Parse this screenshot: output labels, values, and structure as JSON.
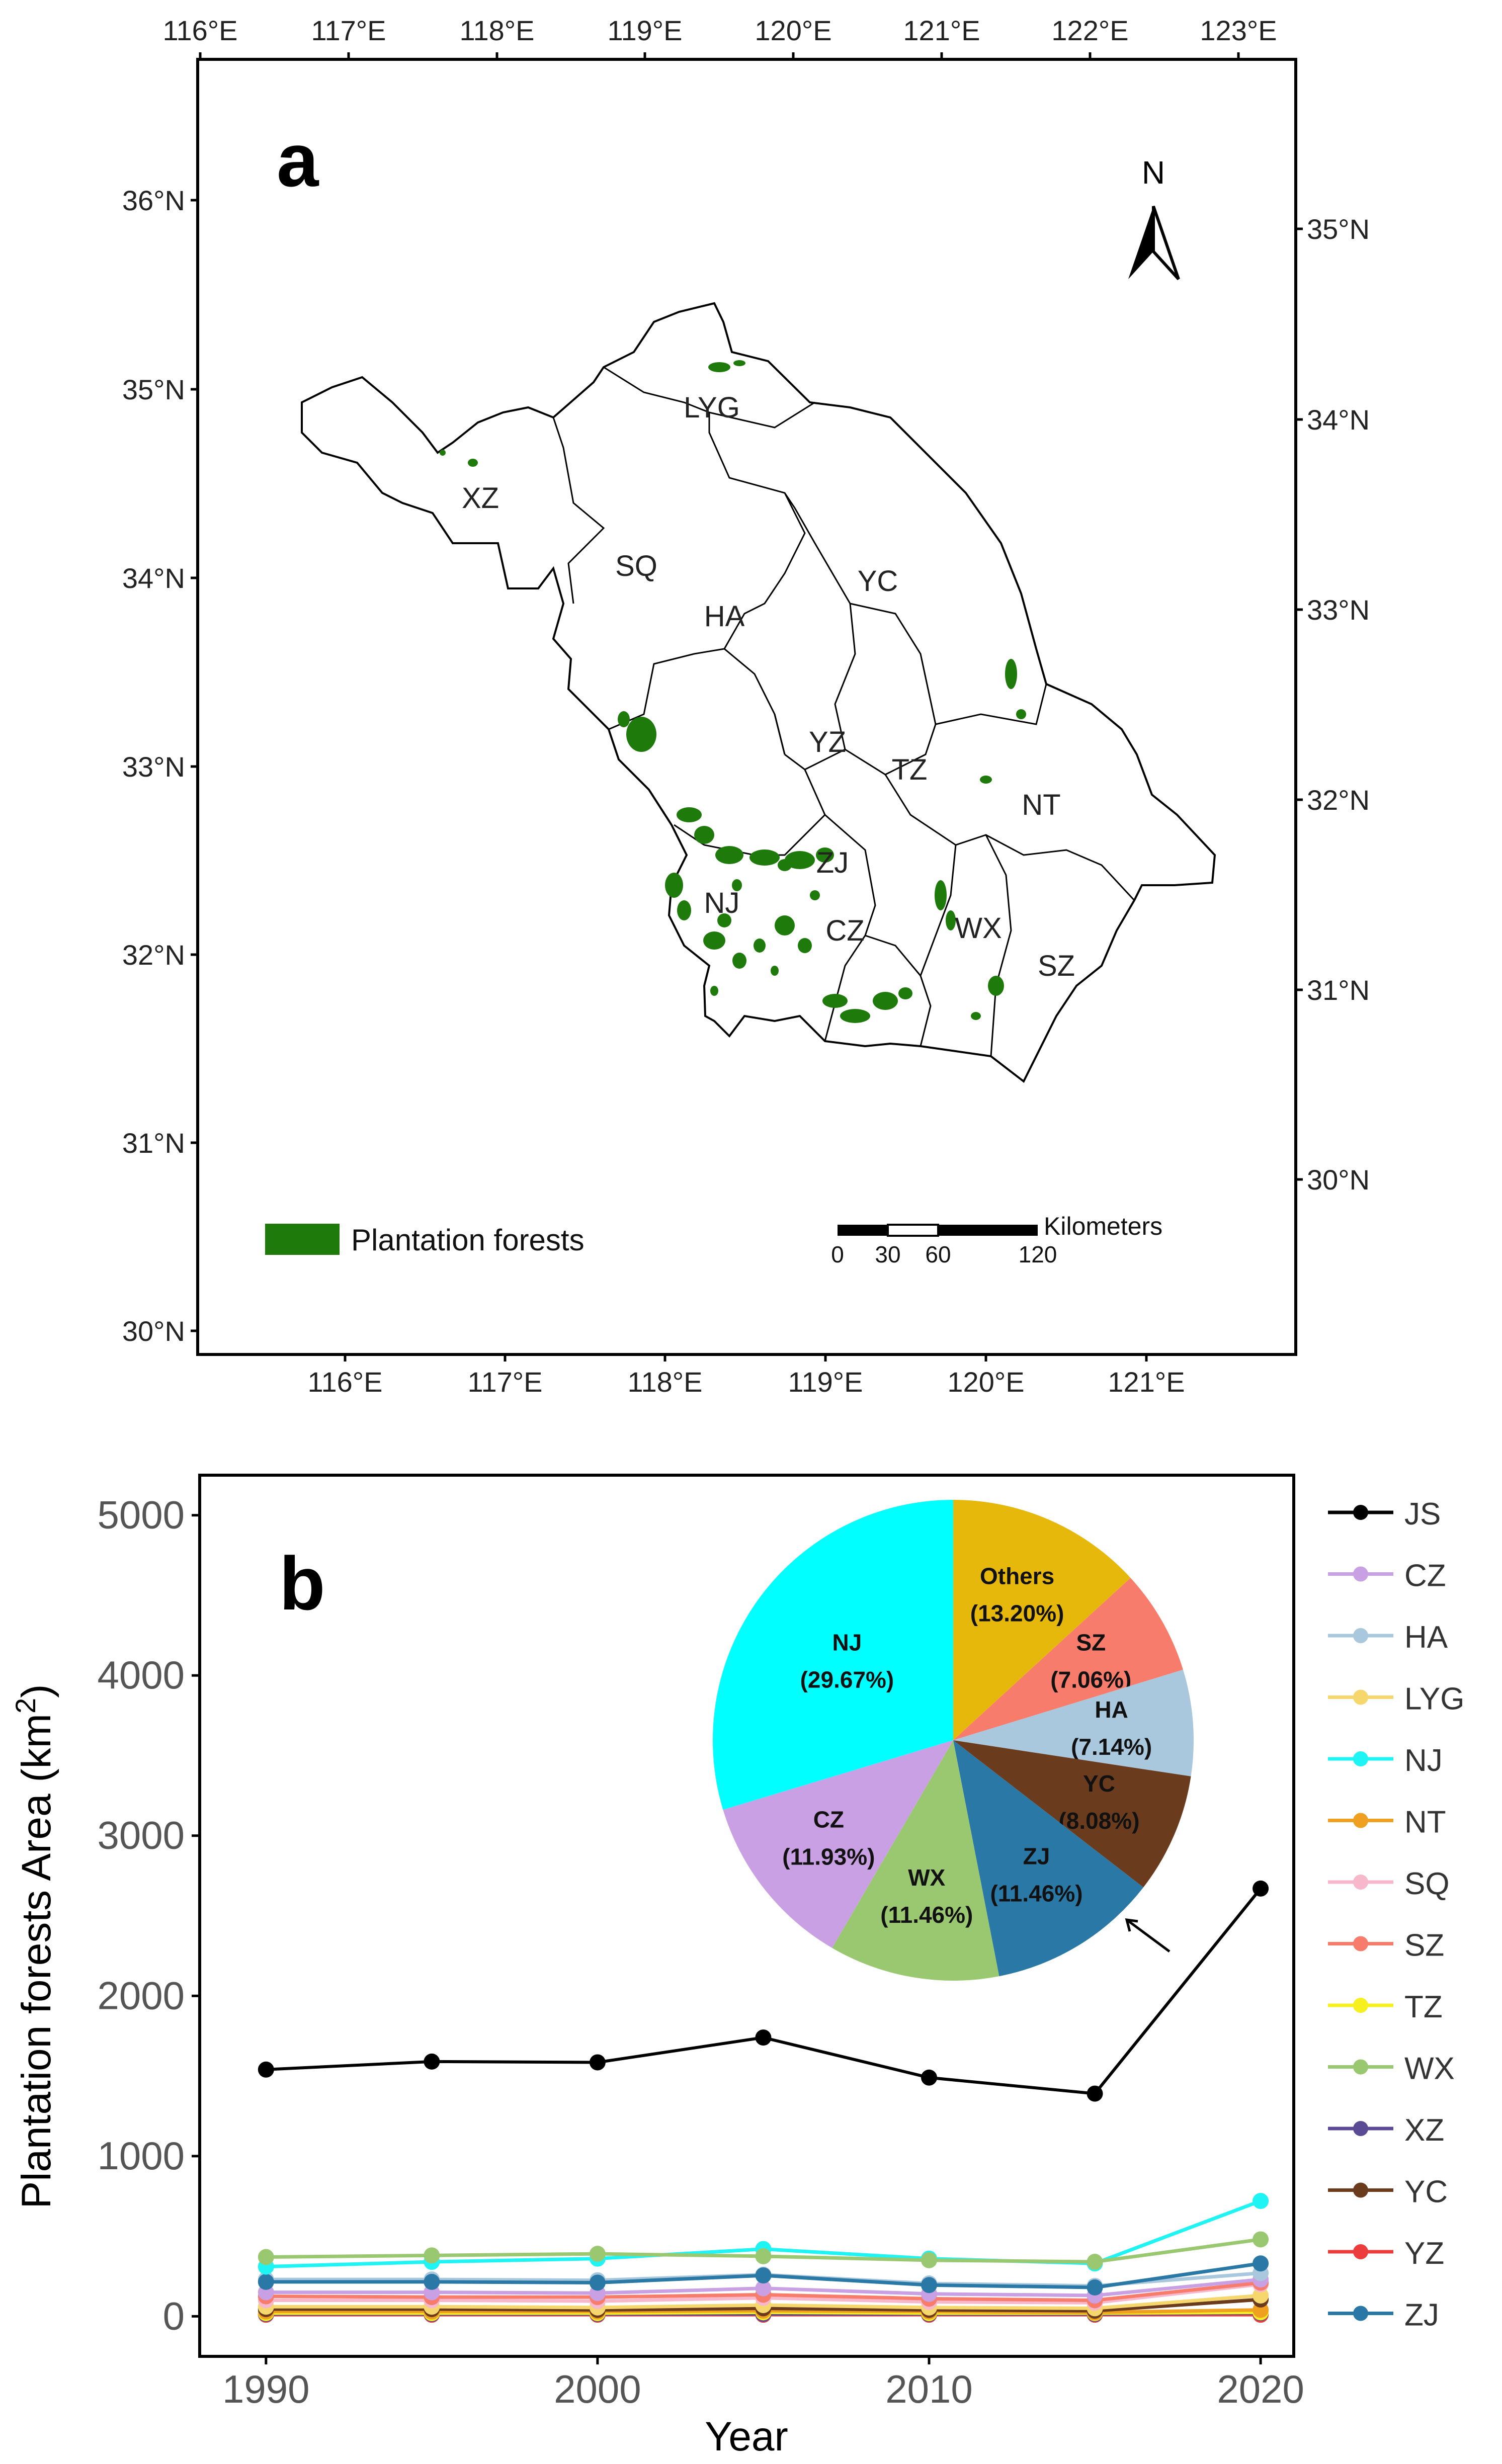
{
  "panel_a": {
    "label": "a",
    "north_label": "N",
    "top_ticks": [
      "116°E",
      "117°E",
      "118°E",
      "119°E",
      "120°E",
      "121°E",
      "122°E",
      "123°E"
    ],
    "bottom_ticks": [
      "116°E",
      "117°E",
      "118°E",
      "119°E",
      "120°E",
      "121°E"
    ],
    "left_ticks": [
      "36°N",
      "35°N",
      "34°N",
      "33°N",
      "32°N",
      "31°N",
      "30°N"
    ],
    "right_ticks": [
      "35°N",
      "34°N",
      "33°N",
      "32°N",
      "31°N",
      "30°N"
    ],
    "regions": [
      "XZ",
      "LYG",
      "SQ",
      "HA",
      "YC",
      "YZ",
      "TZ",
      "NT",
      "ZJ",
      "NJ",
      "CZ",
      "WX",
      "SZ"
    ],
    "legend_label": "Plantation forests",
    "legend_color": "#1f7a0c",
    "scale_bar": {
      "unit": "Kilometers",
      "ticks": [
        "0",
        "30",
        "60",
        "120"
      ]
    }
  },
  "panel_b": {
    "label": "b",
    "legend_items": [
      {
        "name": "JS",
        "color": "#000000"
      },
      {
        "name": "CZ",
        "color": "#c9a0e3"
      },
      {
        "name": "HA",
        "color": "#a9c8dd"
      },
      {
        "name": "LYG",
        "color": "#f5d76e"
      },
      {
        "name": "NJ",
        "color": "#1ef4f4"
      },
      {
        "name": "NT",
        "color": "#f0a020"
      },
      {
        "name": "SQ",
        "color": "#f7b8cc"
      },
      {
        "name": "SZ",
        "color": "#f87c6c"
      },
      {
        "name": "TZ",
        "color": "#f5f01e"
      },
      {
        "name": "WX",
        "color": "#9ac870"
      },
      {
        "name": "XZ",
        "color": "#5b4a94"
      },
      {
        "name": "YC",
        "color": "#6b3b1e"
      },
      {
        "name": "YZ",
        "color": "#ec3c3c"
      },
      {
        "name": "ZJ",
        "color": "#2a78a6"
      }
    ]
  },
  "chart_data": [
    {
      "type": "line",
      "title": "",
      "xlabel": "Year",
      "ylabel": "Plantation forests Area (km",
      "ylabel_sup": "2",
      "ylabel_close": ")",
      "x": [
        1990,
        1995,
        2000,
        2005,
        2010,
        2015,
        2020
      ],
      "xlim": [
        1988,
        2021
      ],
      "ylim": [
        -250,
        5250
      ],
      "xticks": [
        1990,
        2000,
        2010,
        2020
      ],
      "yticks": [
        0,
        1000,
        2000,
        3000,
        4000,
        5000
      ],
      "series": [
        {
          "name": "JS",
          "values": [
            1540,
            1590,
            1585,
            1740,
            1490,
            1390,
            2670
          ]
        },
        {
          "name": "WX",
          "values": [
            370,
            380,
            390,
            375,
            350,
            340,
            480
          ]
        },
        {
          "name": "NJ",
          "values": [
            310,
            340,
            360,
            420,
            360,
            330,
            720
          ]
        },
        {
          "name": "ZJ",
          "values": [
            215,
            215,
            210,
            255,
            195,
            180,
            330
          ]
        },
        {
          "name": "HA",
          "values": [
            230,
            230,
            225,
            260,
            205,
            190,
            270
          ]
        },
        {
          "name": "CZ",
          "values": [
            150,
            150,
            145,
            175,
            140,
            130,
            230
          ]
        },
        {
          "name": "SZ",
          "values": [
            125,
            120,
            120,
            135,
            110,
            100,
            210
          ]
        },
        {
          "name": "SQ",
          "values": [
            100,
            100,
            95,
            115,
            90,
            85,
            200
          ]
        },
        {
          "name": "LYG",
          "values": [
            60,
            60,
            55,
            70,
            55,
            50,
            130
          ]
        },
        {
          "name": "YC",
          "values": [
            45,
            45,
            40,
            50,
            40,
            35,
            105
          ]
        },
        {
          "name": "NT",
          "values": [
            30,
            30,
            30,
            35,
            30,
            25,
            40
          ]
        },
        {
          "name": "TZ",
          "values": [
            20,
            20,
            20,
            25,
            20,
            20,
            25
          ]
        },
        {
          "name": "XZ",
          "values": [
            15,
            15,
            15,
            15,
            15,
            15,
            20
          ]
        },
        {
          "name": "YZ",
          "values": [
            10,
            10,
            10,
            10,
            10,
            10,
            10
          ]
        }
      ]
    },
    {
      "type": "pie",
      "title": "",
      "labels": [
        "Others",
        "SZ",
        "HA",
        "YC",
        "ZJ",
        "WX",
        "CZ",
        "NJ"
      ],
      "values": [
        13.2,
        7.06,
        7.14,
        8.08,
        11.46,
        11.46,
        11.93,
        29.67
      ],
      "value_labels": [
        "(13.20%)",
        "(7.06%)",
        "(7.14%)",
        "(8.08%)",
        "(11.46%)",
        "(11.46%)",
        "(11.93%)",
        "(29.67%)"
      ],
      "colors": [
        "#e5b80b",
        "#f87c6c",
        "#a9c8dd",
        "#6b3b1e",
        "#2a78a6",
        "#9ac870",
        "#c9a0e3",
        "#00ffff"
      ]
    }
  ]
}
